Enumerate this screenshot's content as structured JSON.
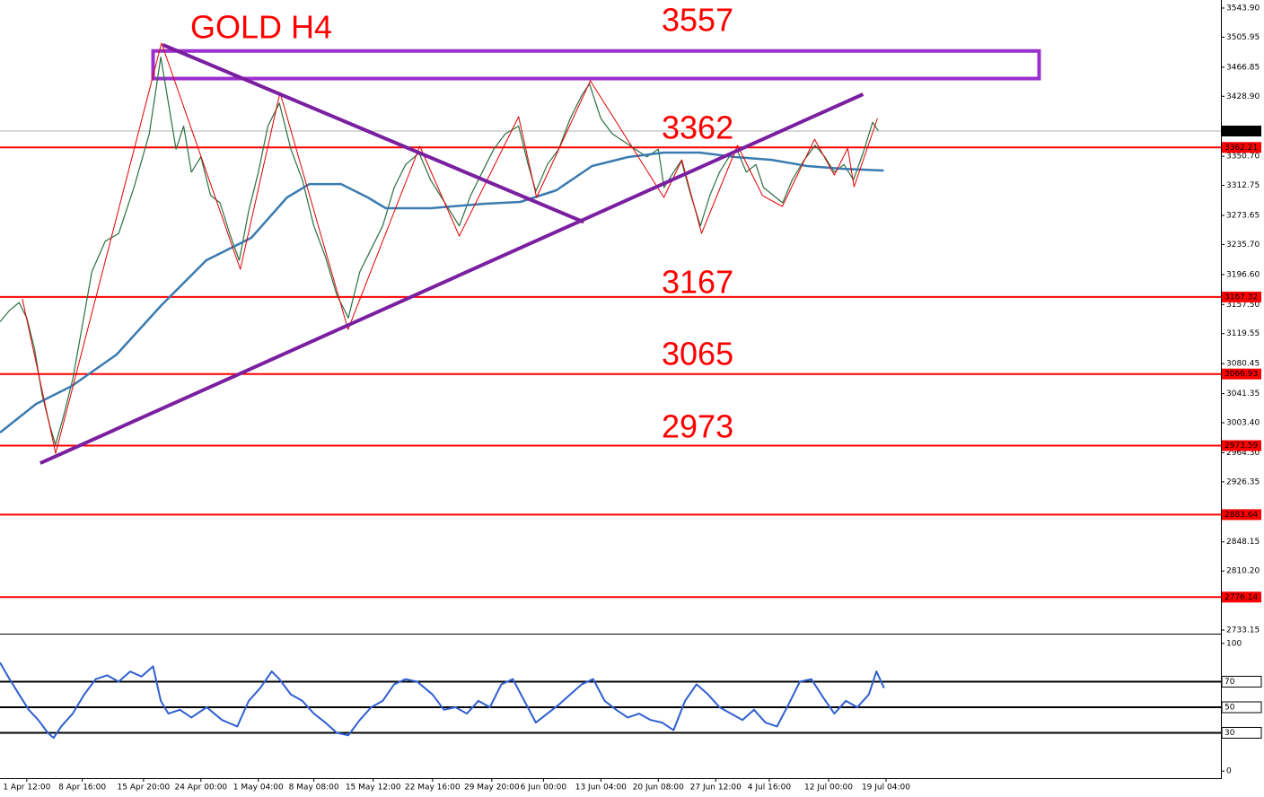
{
  "chart_data": [
    {
      "type": "line",
      "annotations": [
        "GOLD H4",
        "3557",
        "3362",
        "3167",
        "3065",
        "2973"
      ],
      "xlim": [
        0,
        638
      ],
      "ylim": [
        2728.5,
        3554.4
      ],
      "yticks": [
        {
          "value": 3543.9,
          "label": "3543.90"
        },
        3505.95,
        3466.85,
        {
          "value": 3428.9,
          "label": "3428.90"
        },
        {
          "value": 3350.7,
          "label": "3350.70"
        },
        3312.75,
        3273.65,
        {
          "value": 3235.7,
          "label": "3235.70"
        },
        {
          "value": 3196.6,
          "label": "3196.60"
        },
        {
          "value": 3157.5,
          "label": "3157.50"
        },
        3119.55,
        3080.45,
        3041.35,
        {
          "value": 3003.4,
          "label": "3003.40"
        },
        {
          "value": 2964.3,
          "label": "2964.30"
        },
        2926.35,
        2848.15,
        {
          "value": 2810.2,
          "label": "2810.20"
        },
        2733.15
      ],
      "levels": [
        {
          "value": 3383.63,
          "color": "#b0b0b0",
          "label_color": "#000000"
        },
        {
          "value": 3362.21,
          "color": "#ff0000",
          "label_color": "#ff0000"
        },
        {
          "value": 3167.32,
          "color": "#ff0000",
          "label_color": "#ff0000"
        },
        {
          "value": 3066.93,
          "color": "#ff0000",
          "label_color": "#ff0000"
        },
        {
          "value": 2973.59,
          "color": "#ff0000",
          "label_color": "#ff0000"
        },
        {
          "value": 2883.64,
          "color": "#ff0000",
          "label_color": "#ff0000"
        },
        {
          "value": 2776.14,
          "color": "#ff0000",
          "label_color": "#ff0000"
        }
      ],
      "zone": {
        "x": [
          80,
          543
        ],
        "values": [
          3488,
          3452
        ],
        "color": "#9b30d0"
      },
      "trendlines": [
        {
          "x": [
            85,
            305
          ],
          "values": [
            3496,
            3265
          ],
          "color": "#7a1fa0"
        },
        {
          "x": [
            21,
            451
          ],
          "values": [
            2950.7,
            3431.6
          ],
          "color": "#7a1fa0"
        }
      ],
      "series": [
        {
          "color": "#2a7040",
          "width": 1.2,
          "x": [
            0,
            5,
            10,
            14,
            18,
            22,
            26,
            29,
            33,
            38,
            43,
            48,
            55,
            62,
            70,
            78,
            84,
            88,
            92,
            96,
            100,
            105,
            110,
            115,
            120,
            125,
            130,
            135,
            140,
            146,
            152,
            158,
            164,
            170,
            176,
            182,
            188,
            194,
            200,
            206,
            212,
            219,
            225,
            230,
            235,
            240,
            246,
            252,
            258,
            264,
            271,
            276,
            280,
            286,
            292,
            298,
            304,
            308,
            314,
            320,
            326,
            332,
            338,
            344,
            347,
            352,
            356,
            361,
            366,
            371,
            376,
            381,
            385,
            390,
            395,
            399,
            404,
            409,
            414,
            420,
            426,
            431,
            436,
            441,
            446,
            451,
            456,
            459
          ],
          "values": [
            3135,
            3150,
            3160,
            3140,
            3100,
            3040,
            3000,
            2975,
            3010,
            3060,
            3130,
            3200,
            3240,
            3250,
            3310,
            3380,
            3480,
            3420,
            3360,
            3390,
            3330,
            3350,
            3300,
            3290,
            3250,
            3215,
            3280,
            3330,
            3390,
            3420,
            3360,
            3320,
            3260,
            3220,
            3170,
            3140,
            3200,
            3230,
            3260,
            3310,
            3340,
            3355,
            3320,
            3300,
            3280,
            3260,
            3300,
            3330,
            3360,
            3380,
            3390,
            3340,
            3305,
            3340,
            3360,
            3400,
            3430,
            3445,
            3400,
            3380,
            3370,
            3360,
            3350,
            3360,
            3310,
            3330,
            3345,
            3300,
            3260,
            3300,
            3330,
            3350,
            3360,
            3330,
            3340,
            3310,
            3300,
            3290,
            3320,
            3345,
            3365,
            3350,
            3330,
            3340,
            3320,
            3355,
            3395,
            3384
          ]
        },
        {
          "color": "#3b7bb0",
          "width": 2.5,
          "x": [
            0,
            18.8,
            37.5,
            60.9,
            84.4,
            107.8,
            131.3,
            150,
            161.7,
            178.2,
            192.2,
            201.6,
            225,
            253.2,
            271.9,
            290.7,
            309.4,
            328.2,
            346.9,
            365.7,
            384.4,
            403.2,
            421.9,
            440.7,
            461.8
          ],
          "values": [
            2990.5,
            3027.9,
            3051.3,
            3092.2,
            3156.6,
            3215.1,
            3244.4,
            3297,
            3314.5,
            3314.5,
            3297,
            3283,
            3283,
            3288.8,
            3291.2,
            3306.4,
            3338,
            3349.7,
            3355.5,
            3355.5,
            3349.7,
            3346.1,
            3338,
            3334.4,
            3332.1
          ]
        },
        {
          "color": "#e00000",
          "width": 1,
          "x": [
            11.7,
            29.1,
            84.4,
            125.6,
            146.3,
            181.9,
            219.4,
            240,
            271,
            280.4,
            308.5,
            346.9,
            356.3,
            366.6,
            385.4,
            398.5,
            408.8,
            425.7,
            436,
            443,
            446.3,
            458.5
          ],
          "values": [
            3164.8,
            2963.5,
            3498.2,
            3203.4,
            3433.9,
            3125,
            3363.7,
            3246.7,
            3402.3,
            3297,
            3449.1,
            3297,
            3346.1,
            3250.2,
            3364.9,
            3299.3,
            3285.3,
            3373,
            3326.2,
            3361.3,
            3311,
            3400
          ]
        }
      ]
    },
    {
      "type": "line",
      "xlim": [
        0,
        638
      ],
      "ylim": [
        -5.5,
        106.2
      ],
      "yticks": [
        100,
        0
      ],
      "levels": [
        70,
        50,
        30
      ],
      "xticks": [
        {
          "value": 14,
          "label": "1 Apr 12:00"
        },
        {
          "value": 43,
          "label": "8 Apr 16:00"
        },
        {
          "value": 75,
          "label": "15 Apr 20:00"
        },
        {
          "value": 105,
          "label": "24 Apr 00:00"
        },
        {
          "value": 135,
          "label": "1 May 04:00"
        },
        {
          "value": 164,
          "label": "8 May 08:00"
        },
        {
          "value": 195,
          "label": "15 May 12:00"
        },
        {
          "value": 226,
          "label": "22 May 16:00"
        },
        {
          "value": 257,
          "label": "29 May 20:00"
        },
        {
          "value": 284,
          "label": "6 Jun 00:00"
        },
        {
          "value": 314,
          "label": "13 Jun 04:00"
        },
        {
          "value": 344,
          "label": "20 Jun 08:00"
        },
        {
          "value": 374,
          "label": "27 Jun 12:00"
        },
        {
          "value": 402,
          "label": "4 Jul 16:00"
        },
        {
          "value": 433,
          "label": "12 Jul 00:00"
        },
        {
          "value": 463,
          "label": "19 Jul 04:00"
        }
      ],
      "series": [
        {
          "color": "#2f5fd0",
          "width": 2,
          "x": [
            0,
            5,
            10,
            15,
            20,
            25,
            28,
            32,
            38,
            44,
            50,
            56,
            62,
            68,
            74,
            80,
            84,
            88,
            94,
            100,
            108,
            116,
            124,
            130,
            136,
            142,
            146,
            152,
            158,
            164,
            170,
            176,
            182,
            188,
            194,
            200,
            206,
            212,
            218,
            226,
            232,
            238,
            244,
            250,
            256,
            262,
            268,
            274,
            280,
            286,
            292,
            298,
            304,
            310,
            316,
            322,
            328,
            334,
            340,
            346,
            352,
            358,
            364,
            370,
            376,
            382,
            388,
            394,
            400,
            406,
            412,
            418,
            424,
            430,
            436,
            442,
            448,
            454,
            458,
            462
          ],
          "values": [
            85,
            72,
            60,
            48,
            40,
            30,
            26,
            35,
            45,
            60,
            72,
            75,
            70,
            78,
            74,
            82,
            55,
            45,
            48,
            42,
            50,
            40,
            35,
            55,
            65,
            78,
            72,
            60,
            55,
            45,
            38,
            30,
            28,
            40,
            50,
            55,
            68,
            72,
            70,
            60,
            48,
            50,
            45,
            55,
            50,
            68,
            72,
            55,
            38,
            45,
            52,
            60,
            68,
            72,
            55,
            48,
            42,
            45,
            40,
            38,
            32,
            55,
            68,
            60,
            50,
            45,
            40,
            48,
            38,
            35,
            52,
            70,
            72,
            58,
            45,
            55,
            50,
            60,
            78,
            65
          ]
        }
      ]
    }
  ]
}
